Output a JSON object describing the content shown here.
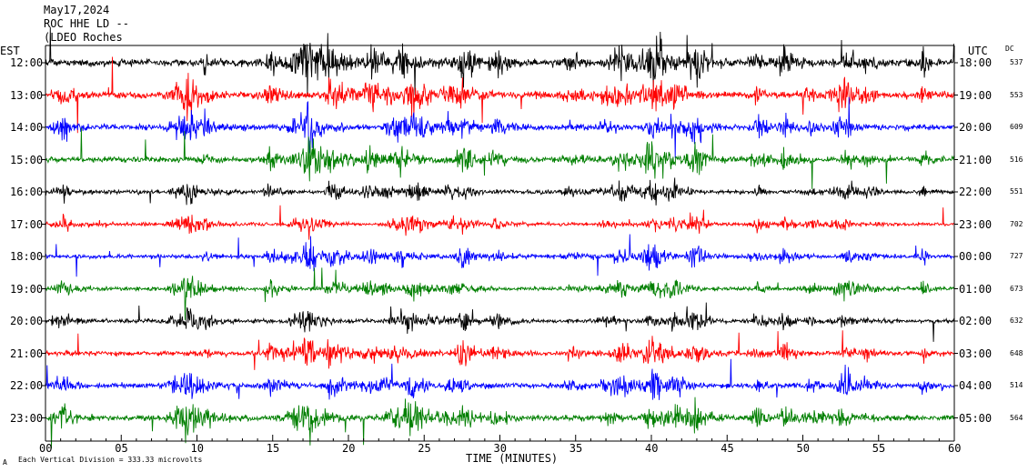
{
  "header": {
    "date": "May17,2024",
    "station": "ROC HHE LD --",
    "network": "(LDEO Roches"
  },
  "left_axis_label": "EST",
  "right_axis_label": "UTC",
  "dc_label": "DC",
  "footer": {
    "corner_mark": "A",
    "scale_note": "Each Vertical Division =  333.33 microvolts"
  },
  "colors": {
    "black": "#000000",
    "red": "#ff0000",
    "blue": "#0000ff",
    "green": "#007f00"
  },
  "chart_data": {
    "type": "line",
    "title": "",
    "xlabel": "TIME (MINUTES)",
    "ylabel": "",
    "xlim": [
      0,
      60
    ],
    "x_ticks": [
      0,
      5,
      10,
      15,
      20,
      25,
      30,
      35,
      40,
      45,
      50,
      55,
      60
    ],
    "x_tick_labels": [
      "00",
      "05",
      "10",
      "15",
      "20",
      "25",
      "30",
      "35",
      "40",
      "45",
      "50",
      "55",
      "60"
    ],
    "rows": [
      {
        "est": "12:00",
        "utc": "18:00",
        "dc": "537",
        "color": "#000000",
        "amp": 1.3
      },
      {
        "est": "13:00",
        "utc": "19:00",
        "dc": "553",
        "color": "#ff0000",
        "amp": 1.2
      },
      {
        "est": "14:00",
        "utc": "20:00",
        "dc": "609",
        "color": "#0000ff",
        "amp": 1.0
      },
      {
        "est": "15:00",
        "utc": "21:00",
        "dc": "516",
        "color": "#007f00",
        "amp": 1.0
      },
      {
        "est": "16:00",
        "utc": "22:00",
        "dc": "551",
        "color": "#000000",
        "amp": 0.7
      },
      {
        "est": "17:00",
        "utc": "23:00",
        "dc": "702",
        "color": "#ff0000",
        "amp": 0.6
      },
      {
        "est": "18:00",
        "utc": "00:00",
        "dc": "727",
        "color": "#0000ff",
        "amp": 0.7
      },
      {
        "est": "19:00",
        "utc": "01:00",
        "dc": "673",
        "color": "#007f00",
        "amp": 0.7
      },
      {
        "est": "20:00",
        "utc": "02:00",
        "dc": "632",
        "color": "#000000",
        "amp": 0.7
      },
      {
        "est": "21:00",
        "utc": "03:00",
        "dc": "648",
        "color": "#ff0000",
        "amp": 0.8
      },
      {
        "est": "22:00",
        "utc": "04:00",
        "dc": "514",
        "color": "#0000ff",
        "amp": 0.9
      },
      {
        "est": "23:00",
        "utc": "05:00",
        "dc": "564",
        "color": "#007f00",
        "amp": 1.0
      }
    ]
  }
}
